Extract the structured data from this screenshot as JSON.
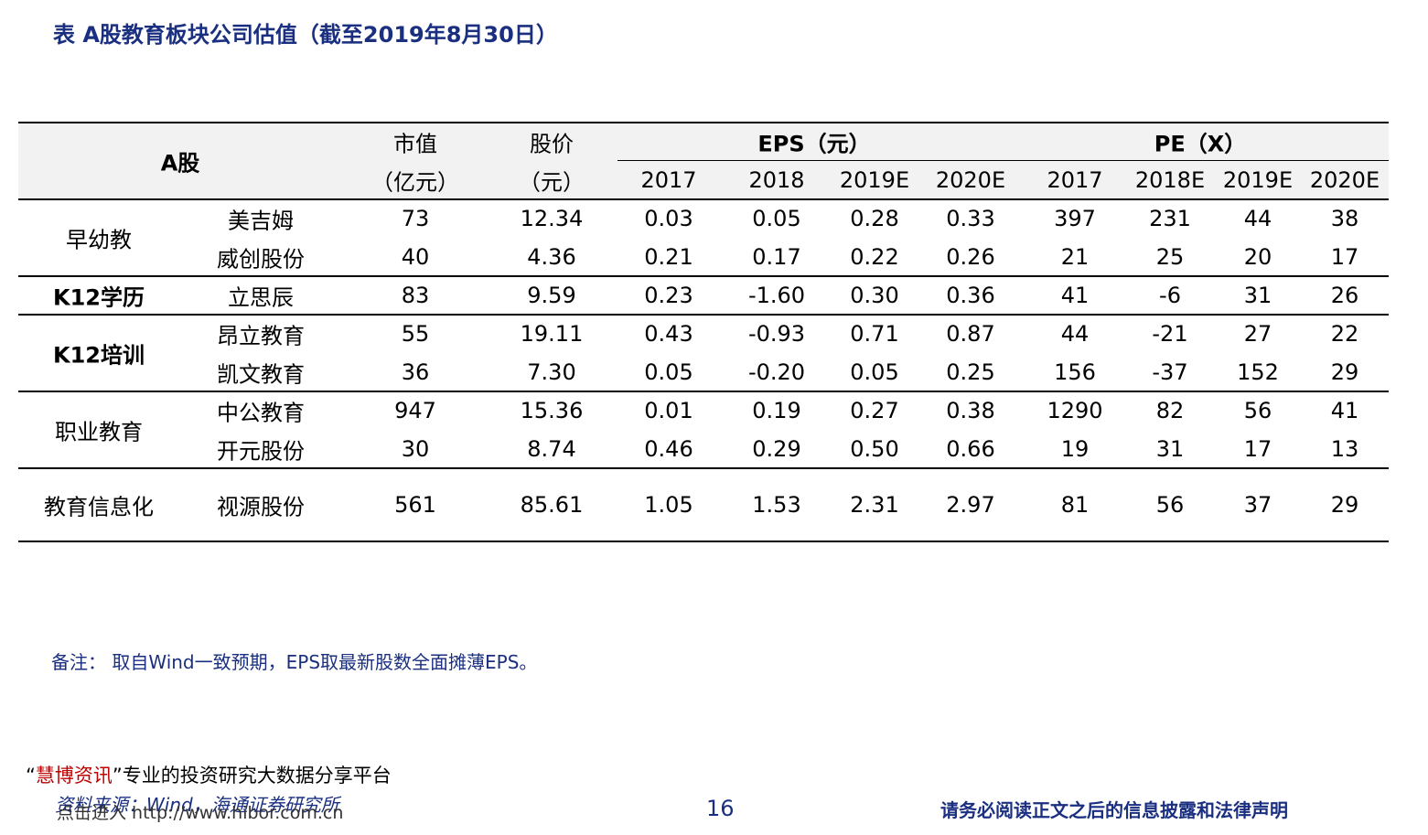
{
  "title": "表  A股教育板块公司估值（截至2019年8月30日）",
  "table": {
    "header": {
      "segment": "A股",
      "mcap": [
        "市值",
        "（亿元）"
      ],
      "price": [
        "股价",
        "（元）"
      ],
      "eps": "EPS（元）",
      "pe": "PE（X）",
      "eps_years": [
        "2017",
        "2018",
        "2019E",
        "2020E"
      ],
      "pe_years": [
        "2017",
        "2018E",
        "2019E",
        "2020E"
      ]
    },
    "groups": [
      {
        "name": "早幼教",
        "rows": [
          [
            "美吉姆",
            "73",
            "12.34",
            "0.03",
            "0.05",
            "0.28",
            "0.33",
            "397",
            "231",
            "44",
            "38"
          ],
          [
            "威创股份",
            "40",
            "4.36",
            "0.21",
            "0.17",
            "0.22",
            "0.26",
            "21",
            "25",
            "20",
            "17"
          ]
        ]
      },
      {
        "name": "K12学历",
        "rows": [
          [
            "立思辰",
            "83",
            "9.59",
            "0.23",
            "-1.60",
            "0.30",
            "0.36",
            "41",
            "-6",
            "31",
            "26"
          ]
        ]
      },
      {
        "name": "K12培训",
        "rows": [
          [
            "昂立教育",
            "55",
            "19.11",
            "0.43",
            "-0.93",
            "0.71",
            "0.87",
            "44",
            "-21",
            "27",
            "22"
          ],
          [
            "凯文教育",
            "36",
            "7.30",
            "0.05",
            "-0.20",
            "0.05",
            "0.25",
            "156",
            "-37",
            "152",
            "29"
          ]
        ]
      },
      {
        "name": "职业教育",
        "rows": [
          [
            "中公教育",
            "947",
            "15.36",
            "0.01",
            "0.19",
            "0.27",
            "0.38",
            "1290",
            "82",
            "56",
            "41"
          ],
          [
            "开元股份",
            "30",
            "8.74",
            "0.46",
            "0.29",
            "0.50",
            "0.66",
            "19",
            "31",
            "17",
            "13"
          ]
        ]
      },
      {
        "name": "教育信息化",
        "rows": [
          [
            "视源股份",
            "561",
            "85.61",
            "1.05",
            "1.53",
            "2.31",
            "2.97",
            "81",
            "56",
            "37",
            "29"
          ]
        ]
      }
    ]
  },
  "note": "备注： 取自Wind一致预期，EPS取最新股数全面摊薄EPS。",
  "footer": {
    "quote_open": "“",
    "brand": "慧博资讯",
    "slogan": "”专业的投资研究大数据分享平台",
    "source": "资料来源：Wind，海通证券研究所",
    "link": "点击进入 http://www.hibor.com.cn",
    "page": "16",
    "disclaimer": "请务必阅读正文之后的信息披露和法律声明"
  }
}
